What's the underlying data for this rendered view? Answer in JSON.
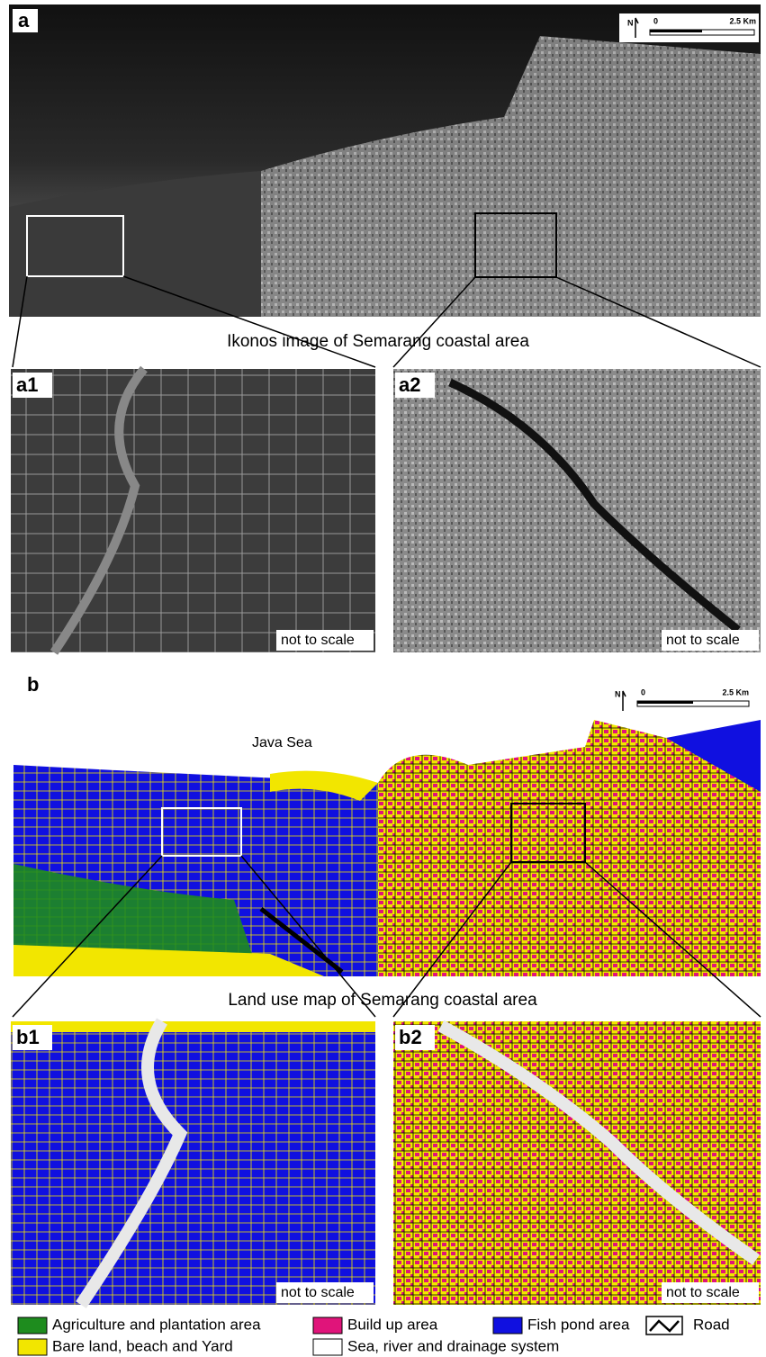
{
  "panel_a": {
    "label": "a",
    "north": "N",
    "scale": {
      "start": "0",
      "end": "2.5 Km"
    },
    "caption": "Ikonos image of Semarang coastal area",
    "insets": [
      {
        "label": "a1",
        "note": "not to scale"
      },
      {
        "label": "a2",
        "note": "not to scale"
      }
    ]
  },
  "panel_b": {
    "label": "b",
    "north": "N",
    "scale": {
      "start": "0",
      "end": "2.5 Km"
    },
    "sea_label": "Java Sea",
    "caption": "Land use map of Semarang coastal area",
    "insets": [
      {
        "label": "b1",
        "note": "not to scale"
      },
      {
        "label": "b2",
        "note": "not to scale"
      }
    ]
  },
  "legend": [
    {
      "label": "Agriculture and plantation area",
      "color": "#1e8c1e"
    },
    {
      "label": "Build up area",
      "color": "#e0147a"
    },
    {
      "label": "Fish pond area",
      "color": "#1010e0"
    },
    {
      "label": "Road",
      "color": "#ffffff"
    },
    {
      "label": "Bare land, beach and Yard",
      "color": "#f2e600"
    },
    {
      "label": "Sea, river and drainage system",
      "color": "#ffffff"
    }
  ]
}
